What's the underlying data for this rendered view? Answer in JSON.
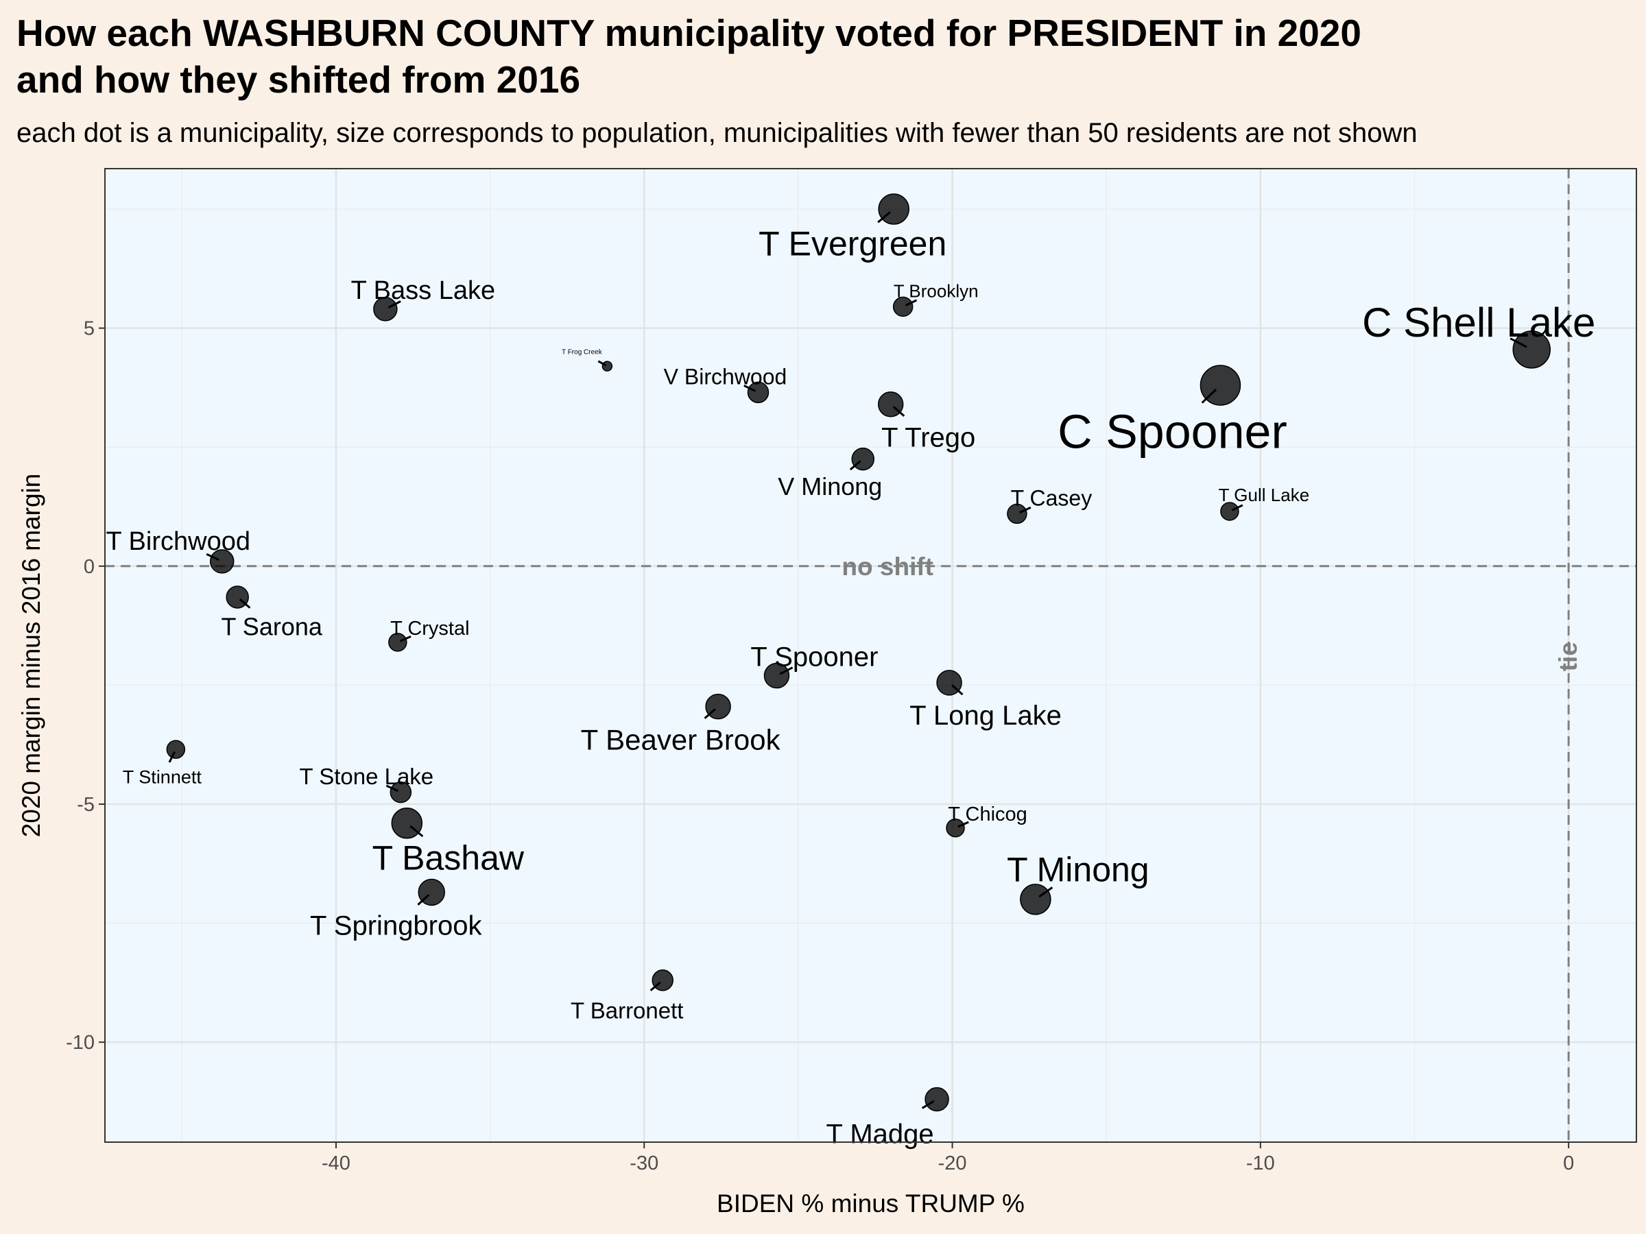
{
  "title": {
    "line1": "How each WASHBURN COUNTY municipality voted for PRESIDENT in 2020",
    "line2": "and how they shifted from 2016"
  },
  "subtitle": "each dot is a municipality, size corresponds to population, municipalities with fewer than 50 residents are not shown",
  "chart_data": {
    "type": "scatter",
    "xlabel": "BIDEN % minus TRUMP %",
    "ylabel": "2020 margin minus 2016 margin",
    "xlim": [
      -47.5,
      2.2
    ],
    "ylim": [
      -12.1,
      8.35
    ],
    "xticks": [
      -40,
      -30,
      -20,
      -10,
      0
    ],
    "yticks": [
      -10,
      -5,
      0,
      5
    ],
    "grid": true,
    "reference_lines": [
      {
        "axis": "y",
        "value": 0,
        "label": "no shift"
      },
      {
        "axis": "x",
        "value": 0,
        "label": "tie"
      }
    ],
    "points": [
      {
        "name": "T Evergreen",
        "x": -21.9,
        "y": 7.5
      },
      {
        "name": "T Bass Lake",
        "x": -38.4,
        "y": 5.4
      },
      {
        "name": "T Brooklyn",
        "x": -21.6,
        "y": 5.45
      },
      {
        "name": "C Shell Lake",
        "x": -1.2,
        "y": 4.55
      },
      {
        "name": "T Frog Creek",
        "x": -31.2,
        "y": 4.2
      },
      {
        "name": "V Birchwood",
        "x": -26.3,
        "y": 3.65
      },
      {
        "name": "C Spooner",
        "x": -11.3,
        "y": 3.8
      },
      {
        "name": "T Trego",
        "x": -22.0,
        "y": 3.4
      },
      {
        "name": "V Minong",
        "x": -22.9,
        "y": 2.25
      },
      {
        "name": "T Casey",
        "x": -17.9,
        "y": 1.1
      },
      {
        "name": "T Gull Lake",
        "x": -11.0,
        "y": 1.15
      },
      {
        "name": "T Birchwood",
        "x": -43.7,
        "y": 0.1
      },
      {
        "name": "T Sarona",
        "x": -43.2,
        "y": -0.65
      },
      {
        "name": "T Crystal",
        "x": -38.0,
        "y": -1.6
      },
      {
        "name": "T Spooner",
        "x": -25.7,
        "y": -2.3
      },
      {
        "name": "T Long Lake",
        "x": -20.1,
        "y": -2.45
      },
      {
        "name": "T Beaver Brook",
        "x": -27.6,
        "y": -2.95
      },
      {
        "name": "T Stinnett",
        "x": -45.2,
        "y": -3.85
      },
      {
        "name": "T Stone Lake",
        "x": -37.9,
        "y": -4.75
      },
      {
        "name": "T Bashaw",
        "x": -37.7,
        "y": -5.4
      },
      {
        "name": "T Chicog",
        "x": -19.9,
        "y": -5.5
      },
      {
        "name": "T Springbrook",
        "x": -36.9,
        "y": -6.85
      },
      {
        "name": "T Minong",
        "x": -17.3,
        "y": -7.0
      },
      {
        "name": "T Barronett",
        "x": -29.4,
        "y": -8.7
      },
      {
        "name": "T Madge",
        "x": -20.5,
        "y": -11.2
      }
    ]
  }
}
